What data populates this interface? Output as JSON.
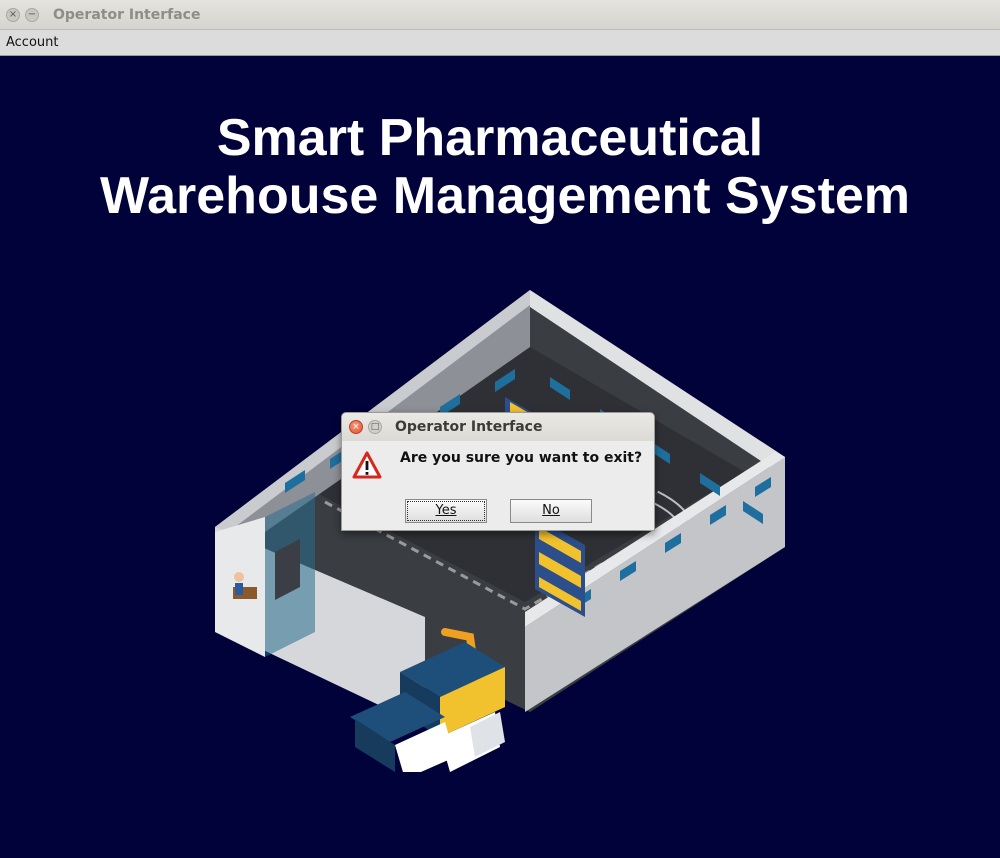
{
  "window": {
    "title": "Operator Interface",
    "close_glyph": "×",
    "minimize_glyph": "−"
  },
  "menubar": {
    "items": [
      {
        "label": "Account"
      }
    ]
  },
  "main": {
    "heading_line1": "Smart Pharmaceutical",
    "heading_line2": "Warehouse Management System",
    "illustration_icon": "isometric-warehouse-icon"
  },
  "dialog": {
    "title": "Operator Interface",
    "close_glyph": "×",
    "maximize_glyph": "□",
    "icon": "warning-icon",
    "message": "Are you sure you want to exit?",
    "yes_label": "Yes",
    "no_label": "No"
  },
  "colors": {
    "background": "#02023a",
    "heading": "#ffffff",
    "dialog_bg": "#ececec",
    "warning_red": "#d9261c"
  }
}
